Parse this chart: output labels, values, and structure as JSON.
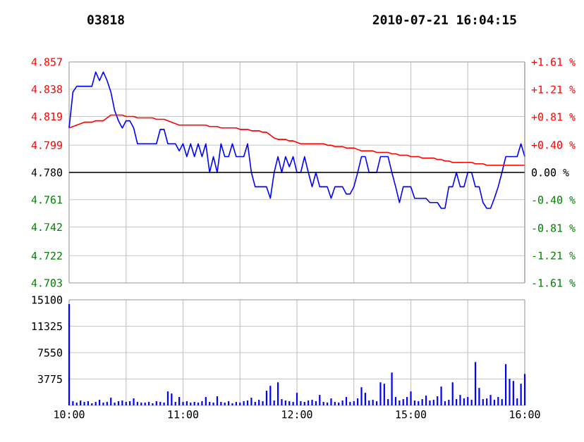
{
  "chart_data": [
    {
      "type": "line",
      "title": "03818",
      "annotations": [
        "2010-07-21 16:04:15"
      ],
      "categories": [
        null,
        null,
        null,
        null,
        null,
        null,
        null,
        null,
        null,
        null,
        null,
        null,
        null,
        null,
        null,
        null,
        null,
        null,
        null,
        null,
        null,
        null,
        null,
        null,
        null,
        null,
        null,
        null,
        null,
        null,
        null,
        null,
        null,
        null,
        null,
        null,
        null,
        null,
        null,
        null,
        null,
        null,
        null,
        null,
        null,
        null,
        null,
        null,
        null,
        null,
        null,
        null,
        null,
        null,
        null,
        null,
        null,
        null,
        null,
        null,
        null,
        null,
        null,
        null,
        null,
        null,
        null,
        null,
        null,
        null,
        null,
        null,
        null,
        null,
        null,
        null,
        null,
        null,
        null,
        null,
        null,
        null,
        null,
        null,
        null,
        null,
        null,
        null,
        null,
        null,
        null,
        null,
        null,
        null,
        null,
        null,
        null,
        null,
        null,
        null,
        null,
        null,
        null,
        null,
        null,
        null,
        null,
        null,
        null,
        null,
        null,
        null,
        null,
        null,
        null,
        null,
        null,
        null,
        null,
        null,
        null
      ],
      "ylim": [
        4.703,
        4.857
      ],
      "yticks": [
        4.703,
        4.722,
        4.742,
        4.761,
        {
          "value": 4.78,
          "label": "4.780"
        },
        4.799,
        4.819,
        4.838,
        4.857
      ],
      "y2lim": [
        -1.61,
        1.61
      ],
      "y2ticks": [
        {
          "value": -1.61,
          "label": "-1.61 %"
        },
        {
          "value": -1.21,
          "label": "-1.21 %"
        },
        {
          "value": -0.81,
          "label": "-0.81 %"
        },
        {
          "value": -0.4,
          "label": "-0.40 %"
        },
        {
          "value": 0,
          "label": "0.00 %"
        },
        {
          "value": 0.4,
          "label": "+0.40 %"
        },
        {
          "value": 0.81,
          "label": "+0.81 %"
        },
        {
          "value": 1.21,
          "label": "+1.21 %"
        },
        {
          "value": 1.61,
          "label": "+1.61 %"
        }
      ],
      "ref_lines": [
        {
          "axis": "y",
          "value": 4.78,
          "color": "#000000"
        }
      ],
      "tick_labels": "y",
      "grid": true,
      "series": [
        {
          "color": "#0000ff",
          "values": [
            4.811,
            4.836,
            4.84,
            4.84,
            4.84,
            4.84,
            4.84,
            4.85,
            4.844,
            4.85,
            4.844,
            4.836,
            4.823,
            4.816,
            4.811,
            4.816,
            4.816,
            4.811,
            4.8,
            4.8,
            4.8,
            4.8,
            4.8,
            4.8,
            4.81,
            4.81,
            4.8,
            4.8,
            4.8,
            4.795,
            4.8,
            4.791,
            4.8,
            4.791,
            4.8,
            4.791,
            4.8,
            4.78,
            4.791,
            4.78,
            4.8,
            4.791,
            4.791,
            4.8,
            4.791,
            4.791,
            4.791,
            4.8,
            4.78,
            4.77,
            4.77,
            4.77,
            4.77,
            4.762,
            4.78,
            4.791,
            4.78,
            4.791,
            4.784,
            4.791,
            4.78,
            4.78,
            4.791,
            4.78,
            4.77,
            4.78,
            4.77,
            4.77,
            4.77,
            4.762,
            4.77,
            4.77,
            4.77,
            4.765,
            4.765,
            4.77,
            4.78,
            4.791,
            4.791,
            4.78,
            4.78,
            4.78,
            4.791,
            4.791,
            4.791,
            4.78,
            4.77,
            4.759,
            4.77,
            4.77,
            4.77,
            4.762,
            4.762,
            4.762,
            4.762,
            4.759,
            4.759,
            4.759,
            4.755,
            4.755,
            4.77,
            4.77,
            4.78,
            4.77,
            4.77,
            4.78,
            4.78,
            4.77,
            4.77,
            4.759,
            4.755,
            4.755,
            4.762,
            4.77,
            4.78,
            4.791,
            4.791,
            4.791,
            4.791,
            4.8,
            4.791
          ]
        },
        {
          "color": "#ff0000",
          "values": [
            4.811,
            4.812,
            4.813,
            4.814,
            4.815,
            4.815,
            4.815,
            4.816,
            4.816,
            4.816,
            4.818,
            4.82,
            4.82,
            4.82,
            4.82,
            4.819,
            4.819,
            4.819,
            4.818,
            4.818,
            4.818,
            4.818,
            4.818,
            4.817,
            4.817,
            4.817,
            4.816,
            4.815,
            4.814,
            4.813,
            4.813,
            4.813,
            4.813,
            4.813,
            4.813,
            4.813,
            4.813,
            4.812,
            4.812,
            4.812,
            4.811,
            4.811,
            4.811,
            4.811,
            4.811,
            4.81,
            4.81,
            4.81,
            4.809,
            4.809,
            4.809,
            4.808,
            4.808,
            4.806,
            4.804,
            4.803,
            4.803,
            4.803,
            4.802,
            4.802,
            4.801,
            4.8,
            4.8,
            4.8,
            4.8,
            4.8,
            4.8,
            4.8,
            4.799,
            4.799,
            4.798,
            4.798,
            4.798,
            4.797,
            4.797,
            4.797,
            4.796,
            4.795,
            4.795,
            4.795,
            4.795,
            4.794,
            4.794,
            4.794,
            4.794,
            4.793,
            4.793,
            4.792,
            4.792,
            4.792,
            4.791,
            4.791,
            4.791,
            4.79,
            4.79,
            4.79,
            4.79,
            4.789,
            4.789,
            4.788,
            4.788,
            4.787,
            4.787,
            4.787,
            4.787,
            4.787,
            4.787,
            4.786,
            4.786,
            4.786,
            4.785,
            4.785,
            4.785,
            4.785,
            4.785,
            4.785,
            4.785,
            4.785,
            4.785,
            4.785,
            4.785
          ]
        }
      ]
    },
    {
      "type": "bar",
      "color": "#0000ff",
      "categories": [
        "10:00",
        null,
        null,
        null,
        null,
        null,
        null,
        null,
        null,
        null,
        null,
        null,
        null,
        null,
        null,
        null,
        null,
        null,
        null,
        null,
        null,
        null,
        null,
        null,
        null,
        null,
        null,
        null,
        null,
        null,
        "11:00",
        null,
        null,
        null,
        null,
        null,
        null,
        null,
        null,
        null,
        null,
        null,
        null,
        null,
        null,
        null,
        null,
        null,
        null,
        null,
        null,
        null,
        null,
        null,
        null,
        null,
        null,
        null,
        null,
        null,
        "12:00",
        null,
        null,
        null,
        null,
        null,
        null,
        null,
        null,
        null,
        null,
        null,
        null,
        null,
        null,
        null,
        null,
        null,
        null,
        null,
        null,
        null,
        null,
        null,
        null,
        null,
        null,
        null,
        null,
        null,
        "15:00",
        null,
        null,
        null,
        null,
        null,
        null,
        null,
        null,
        null,
        null,
        null,
        null,
        null,
        null,
        null,
        null,
        null,
        null,
        null,
        null,
        null,
        null,
        null,
        null,
        null,
        null,
        null,
        null,
        null,
        "16:00"
      ],
      "ylim": [
        0,
        15100
      ],
      "yticks": [
        3775,
        7550,
        11325,
        15100
      ],
      "grid": true,
      "values": [
        14500,
        600,
        400,
        700,
        500,
        600,
        300,
        500,
        800,
        400,
        500,
        1100,
        400,
        600,
        700,
        500,
        600,
        1000,
        500,
        400,
        400,
        500,
        300,
        600,
        500,
        400,
        2000,
        1700,
        500,
        1200,
        500,
        600,
        400,
        500,
        400,
        600,
        1200,
        500,
        400,
        1300,
        500,
        400,
        600,
        300,
        500,
        400,
        600,
        700,
        1100,
        500,
        800,
        600,
        2100,
        2800,
        700,
        3300,
        900,
        700,
        600,
        500,
        1800,
        600,
        500,
        700,
        800,
        600,
        1500,
        500,
        400,
        1000,
        500,
        400,
        700,
        1200,
        500,
        600,
        1000,
        2600,
        1800,
        700,
        800,
        600,
        3300,
        3100,
        900,
        4700,
        1200,
        700,
        900,
        1200,
        2000,
        700,
        600,
        900,
        1400,
        700,
        800,
        1300,
        2700,
        600,
        800,
        3300,
        900,
        1500,
        1000,
        1200,
        800,
        6200,
        2500,
        900,
        1000,
        1500,
        800,
        1200,
        900,
        5900,
        3800,
        3500,
        1000,
        3100,
        4500
      ]
    }
  ]
}
